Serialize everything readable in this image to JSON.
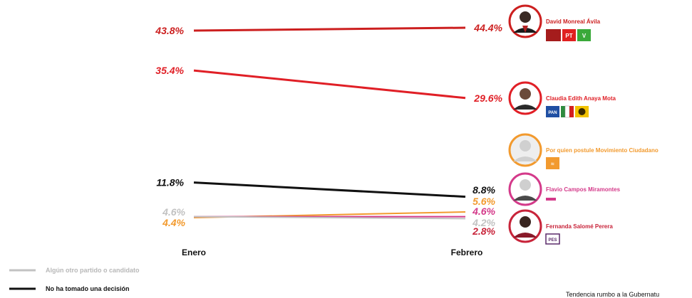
{
  "chart_data": {
    "type": "line",
    "title": "",
    "xlabel": "",
    "ylabel": "",
    "categories": [
      "Enero",
      "Febrero"
    ],
    "ylim": [
      0,
      50
    ],
    "grid": false,
    "legend": "bottom-left",
    "series": [
      {
        "key": "monreal",
        "name": "David Monreal Ávila",
        "values": [
          43.8,
          44.4
        ],
        "labels": [
          "43.8%",
          "44.4%"
        ],
        "color": "#cc1f1f",
        "party_icons": [
          "morena-icon",
          "pt-icon",
          "pvem-icon"
        ]
      },
      {
        "key": "anaya",
        "name": "Claudia Edith Anaya Mota",
        "values": [
          35.4,
          29.6
        ],
        "labels": [
          "35.4%",
          "29.6%"
        ],
        "color": "#e01f26",
        "party_icons": [
          "pan-icon",
          "pri-icon",
          "prd-icon"
        ]
      },
      {
        "key": "mc",
        "name": "Por quien postule Movimiento Ciudadano",
        "values": [
          4.4,
          5.6
        ],
        "labels": [
          "4.4%",
          "5.6%"
        ],
        "color": "#f29a2e",
        "party_icons": [
          "mc-icon"
        ]
      },
      {
        "key": "campos",
        "name": "Flavio Campos Miramontes",
        "values": [
          4.6,
          4.6
        ],
        "labels": [
          null,
          "4.6%"
        ],
        "color": "#d43a8a",
        "party_icons": [
          "pt-small-icon"
        ]
      },
      {
        "key": "salome",
        "name": "Fernanda Salomé Perera",
        "values": [
          null,
          2.8
        ],
        "labels": [
          null,
          "2.8%"
        ],
        "color": "#c8243a",
        "party_icons": [
          "pes-icon"
        ]
      },
      {
        "key": "otro",
        "name": "Algún otro partido o candidato",
        "values": [
          4.6,
          4.2
        ],
        "labels": [
          "4.6%",
          "4.2%"
        ],
        "color": "#c2c2c2",
        "party_icons": []
      },
      {
        "key": "nodecide",
        "name": "No ha tomado una decisión",
        "values": [
          11.8,
          8.8
        ],
        "labels": [
          "11.8%",
          "8.8%"
        ],
        "color": "#111111",
        "party_icons": []
      }
    ]
  },
  "legend": {
    "items": [
      {
        "label": "Algún otro partido o candidato",
        "color": "#c2c2c2"
      },
      {
        "label": "No ha tomado una decisión",
        "color": "#111111"
      }
    ]
  },
  "footer": {
    "text": "Tendencia rumbo a la Gubernatu"
  },
  "badges": {
    "pt": "PT",
    "pvem": "V",
    "pan": "PAN",
    "mc": "≈",
    "pes": "PES"
  }
}
